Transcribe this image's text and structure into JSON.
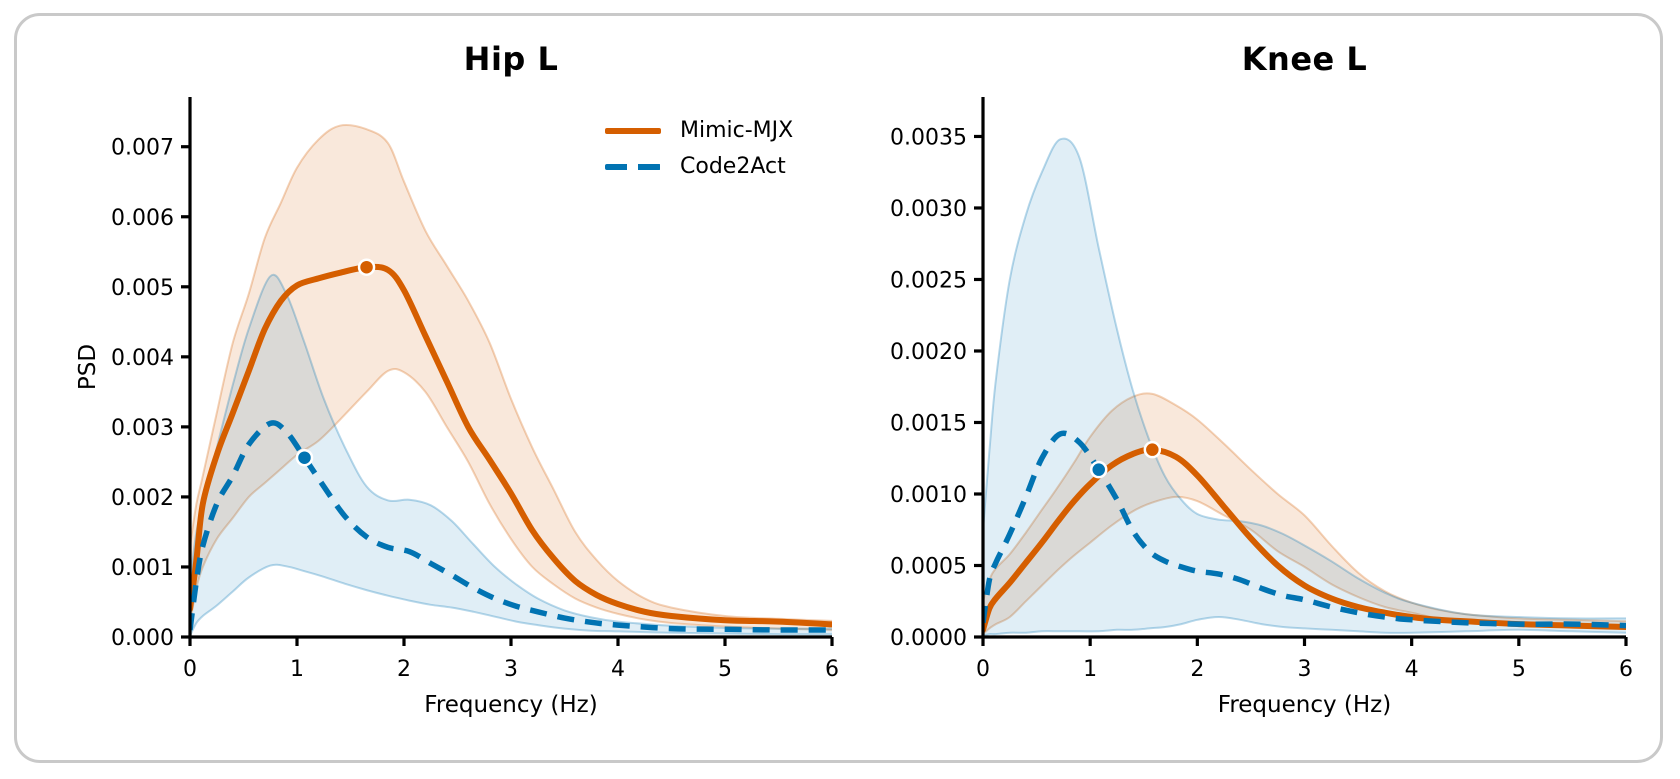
{
  "figure": {
    "background": "#ffffff",
    "card_border_color": "#c9c9c9",
    "axis_color": "#000000"
  },
  "legend": {
    "items": [
      {
        "label": "Mimic-MJX",
        "color": "#D55E00",
        "style": "solid"
      },
      {
        "label": "Code2Act",
        "color": "#0173B2",
        "style": "dashed"
      }
    ]
  },
  "chart_data": {
    "type": "line",
    "legend_position": "upper right of left subplot",
    "grid": false,
    "charts": [
      {
        "title": "Hip L",
        "xlabel": "Frequency (Hz)",
        "ylabel": "PSD",
        "xlim": [
          0,
          6
        ],
        "ylim": [
          0,
          0.00771
        ],
        "xticks": [
          {
            "v": 0,
            "label": "0"
          },
          {
            "v": 1,
            "label": "1"
          },
          {
            "v": 2,
            "label": "2"
          },
          {
            "v": 3,
            "label": "3"
          },
          {
            "v": 4,
            "label": "4"
          },
          {
            "v": 5,
            "label": "5"
          },
          {
            "v": 6,
            "label": "6"
          }
        ],
        "yticks": [
          {
            "v": 0,
            "label": "0.000"
          },
          {
            "v": 0.001,
            "label": "0.001"
          },
          {
            "v": 0.002,
            "label": "0.002"
          },
          {
            "v": 0.003,
            "label": "0.003"
          },
          {
            "v": 0.004,
            "label": "0.004"
          },
          {
            "v": 0.005,
            "label": "0.005"
          },
          {
            "v": 0.006,
            "label": "0.006"
          },
          {
            "v": 0.007,
            "label": "0.007"
          }
        ],
        "series": [
          {
            "name": "Mimic-MJX",
            "color": "#D55E00",
            "style": "solid",
            "x": [
              0,
              0.06,
              0.12,
              0.25,
              0.4,
              0.55,
              0.7,
              0.85,
              1.0,
              1.2,
              1.4,
              1.65,
              1.85,
              2.0,
              2.2,
              2.4,
              2.6,
              2.8,
              3.0,
              3.2,
              3.4,
              3.6,
              3.8,
              4.0,
              4.25,
              4.5,
              5.0,
              5.5,
              6.0
            ],
            "mean": [
              0.0004,
              0.0011,
              0.0019,
              0.0026,
              0.0032,
              0.0038,
              0.0044,
              0.0048,
              0.00502,
              0.00512,
              0.0052,
              0.00528,
              0.00524,
              0.00495,
              0.0043,
              0.00365,
              0.003,
              0.00253,
              0.00205,
              0.00152,
              0.00112,
              0.0008,
              0.0006,
              0.00047,
              0.00036,
              0.0003,
              0.00024,
              0.00022,
              0.00018
            ],
            "upper": [
              0.0013,
              0.0019,
              0.0023,
              0.0032,
              0.0042,
              0.0049,
              0.0057,
              0.0062,
              0.0067,
              0.0071,
              0.0073,
              0.00725,
              0.00705,
              0.0065,
              0.0058,
              0.0053,
              0.0048,
              0.0042,
              0.0034,
              0.0027,
              0.0021,
              0.0015,
              0.0011,
              0.0008,
              0.00055,
              0.00042,
              0.0003,
              0.00026,
              0.00023
            ],
            "lower": [
              0.0002,
              0.0007,
              0.001,
              0.0014,
              0.0017,
              0.002,
              0.0022,
              0.0024,
              0.0026,
              0.0028,
              0.0031,
              0.0035,
              0.0038,
              0.00378,
              0.0035,
              0.003,
              0.0025,
              0.0019,
              0.0014,
              0.001,
              0.00075,
              0.00055,
              0.00042,
              0.00033,
              0.00025,
              0.0002,
              0.00015,
              0.00012,
              0.0001
            ],
            "peak_marker": {
              "x": 1.65,
              "y": 0.00528
            }
          },
          {
            "name": "Code2Act",
            "color": "#0173B2",
            "style": "dashed",
            "x": [
              0,
              0.06,
              0.12,
              0.25,
              0.4,
              0.55,
              0.75,
              0.9,
              1.07,
              1.25,
              1.45,
              1.65,
              1.85,
              2.05,
              2.25,
              2.45,
              2.65,
              2.85,
              3.05,
              3.25,
              3.5,
              3.75,
              4.0,
              4.5,
              5.0,
              5.5,
              6.0
            ],
            "mean": [
              0.0001,
              0.0008,
              0.0013,
              0.0019,
              0.0023,
              0.00275,
              0.00305,
              0.00293,
              0.00256,
              0.00215,
              0.00172,
              0.00143,
              0.00128,
              0.00122,
              0.00105,
              0.00088,
              0.0007,
              0.00055,
              0.00044,
              0.00036,
              0.00027,
              0.00021,
              0.00017,
              0.00012,
              0.00011,
              0.0001,
              0.0001
            ],
            "upper": [
              0.0008,
              0.0015,
              0.0019,
              0.0027,
              0.0036,
              0.0044,
              0.00515,
              0.0049,
              0.0042,
              0.0034,
              0.0027,
              0.00215,
              0.00195,
              0.00196,
              0.00188,
              0.00165,
              0.00132,
              0.001,
              0.00075,
              0.00055,
              0.00038,
              0.00028,
              0.00022,
              0.00016,
              0.00013,
              0.00012,
              0.00012
            ],
            "lower": [
              2e-05,
              0.0002,
              0.0003,
              0.00045,
              0.00065,
              0.00085,
              0.00102,
              0.00101,
              0.00094,
              0.00086,
              0.00076,
              0.00067,
              0.00059,
              0.00052,
              0.00046,
              0.00042,
              0.00036,
              0.00029,
              0.00022,
              0.00017,
              0.00012,
              9e-05,
              8e-05,
              6e-05,
              5e-05,
              4e-05,
              4e-05
            ],
            "peak_marker": {
              "x": 1.07,
              "y": 0.00256
            }
          }
        ]
      },
      {
        "title": "Knee L",
        "xlabel": "Frequency (Hz)",
        "ylabel": "",
        "xlim": [
          0,
          6
        ],
        "ylim": [
          0,
          0.003776
        ],
        "xticks": [
          {
            "v": 0,
            "label": "0"
          },
          {
            "v": 1,
            "label": "1"
          },
          {
            "v": 2,
            "label": "2"
          },
          {
            "v": 3,
            "label": "3"
          },
          {
            "v": 4,
            "label": "4"
          },
          {
            "v": 5,
            "label": "5"
          },
          {
            "v": 6,
            "label": "6"
          }
        ],
        "yticks": [
          {
            "v": 0,
            "label": "0.0000"
          },
          {
            "v": 0.0005,
            "label": "0.0005"
          },
          {
            "v": 0.001,
            "label": "0.0010"
          },
          {
            "v": 0.0015,
            "label": "0.0015"
          },
          {
            "v": 0.002,
            "label": "0.0020"
          },
          {
            "v": 0.0025,
            "label": "0.0025"
          },
          {
            "v": 0.003,
            "label": "0.0030"
          },
          {
            "v": 0.0035,
            "label": "0.0035"
          }
        ],
        "series": [
          {
            "name": "Mimic-MJX",
            "color": "#D55E00",
            "style": "solid",
            "x": [
              0,
              0.06,
              0.12,
              0.25,
              0.4,
              0.55,
              0.7,
              0.85,
              1.0,
              1.2,
              1.4,
              1.58,
              1.8,
              2.0,
              2.25,
              2.5,
              2.75,
              3.0,
              3.25,
              3.5,
              3.75,
              4.0,
              4.25,
              4.5,
              5.0,
              5.5,
              6.0
            ],
            "mean": [
              5e-05,
              0.0002,
              0.00027,
              0.00038,
              0.00052,
              0.00066,
              0.00081,
              0.00095,
              0.00107,
              0.0012,
              0.00128,
              0.00131,
              0.00126,
              0.00113,
              0.00091,
              0.00069,
              0.0005,
              0.00036,
              0.00027,
              0.00021,
              0.00017,
              0.00014,
              0.00012,
              0.00011,
              9e-05,
              8e-05,
              7e-05
            ],
            "upper": [
              0.00025,
              0.0004,
              0.00048,
              0.00058,
              0.00073,
              0.00089,
              0.00105,
              0.00122,
              0.0014,
              0.00158,
              0.00168,
              0.0017,
              0.00162,
              0.00152,
              0.00135,
              0.00117,
              0.001,
              0.00085,
              0.00064,
              0.00045,
              0.00032,
              0.00024,
              0.00019,
              0.00016,
              0.00013,
              0.00012,
              0.00011
            ],
            "lower": [
              2e-05,
              6e-05,
              9e-05,
              0.00014,
              0.00025,
              0.00036,
              0.00047,
              0.00057,
              0.00066,
              0.00078,
              0.00088,
              0.00094,
              0.00098,
              0.00095,
              0.00085,
              0.00075,
              0.0006,
              0.00049,
              0.00037,
              0.00028,
              0.00021,
              0.00017,
              0.00013,
              0.00011,
              8e-05,
              7e-05,
              6e-05
            ],
            "peak_marker": {
              "x": 1.58,
              "y": 0.00131
            }
          },
          {
            "name": "Code2Act",
            "color": "#0173B2",
            "style": "dashed",
            "x": [
              0,
              0.06,
              0.12,
              0.25,
              0.4,
              0.55,
              0.72,
              0.9,
              1.08,
              1.25,
              1.4,
              1.55,
              1.7,
              1.85,
              2.0,
              2.2,
              2.4,
              2.6,
              2.8,
              3.0,
              3.25,
              3.5,
              3.75,
              4.0,
              4.5,
              5.0,
              5.5,
              6.0
            ],
            "mean": [
              0.0001,
              0.0004,
              0.00052,
              0.00072,
              0.00098,
              0.00125,
              0.00142,
              0.00136,
              0.00117,
              0.00096,
              0.00074,
              0.0006,
              0.00053,
              0.00049,
              0.00046,
              0.00044,
              0.0004,
              0.00034,
              0.00029,
              0.00026,
              0.00021,
              0.00017,
              0.00014,
              0.00012,
              0.0001,
              9e-05,
              9e-05,
              8e-05
            ],
            "upper": [
              0.00075,
              0.0013,
              0.0018,
              0.0025,
              0.00295,
              0.00325,
              0.00348,
              0.00335,
              0.00272,
              0.00215,
              0.00172,
              0.00138,
              0.00112,
              0.00096,
              0.00086,
              0.00082,
              0.00081,
              0.00078,
              0.00072,
              0.00064,
              0.00053,
              0.00041,
              0.00031,
              0.00024,
              0.00016,
              0.00014,
              0.00013,
              0.00013
            ],
            "lower": [
              1e-05,
              2e-05,
              2e-05,
              3e-05,
              3e-05,
              4e-05,
              4e-05,
              4e-05,
              4e-05,
              5e-05,
              5e-05,
              6e-05,
              7e-05,
              9e-05,
              0.00012,
              0.00014,
              0.00012,
              9e-05,
              7e-05,
              6e-05,
              5e-05,
              4e-05,
              3e-05,
              3e-05,
              4e-05,
              5e-05,
              4e-05,
              3e-05
            ],
            "peak_marker": {
              "x": 1.08,
              "y": 0.00117
            }
          }
        ]
      }
    ]
  }
}
